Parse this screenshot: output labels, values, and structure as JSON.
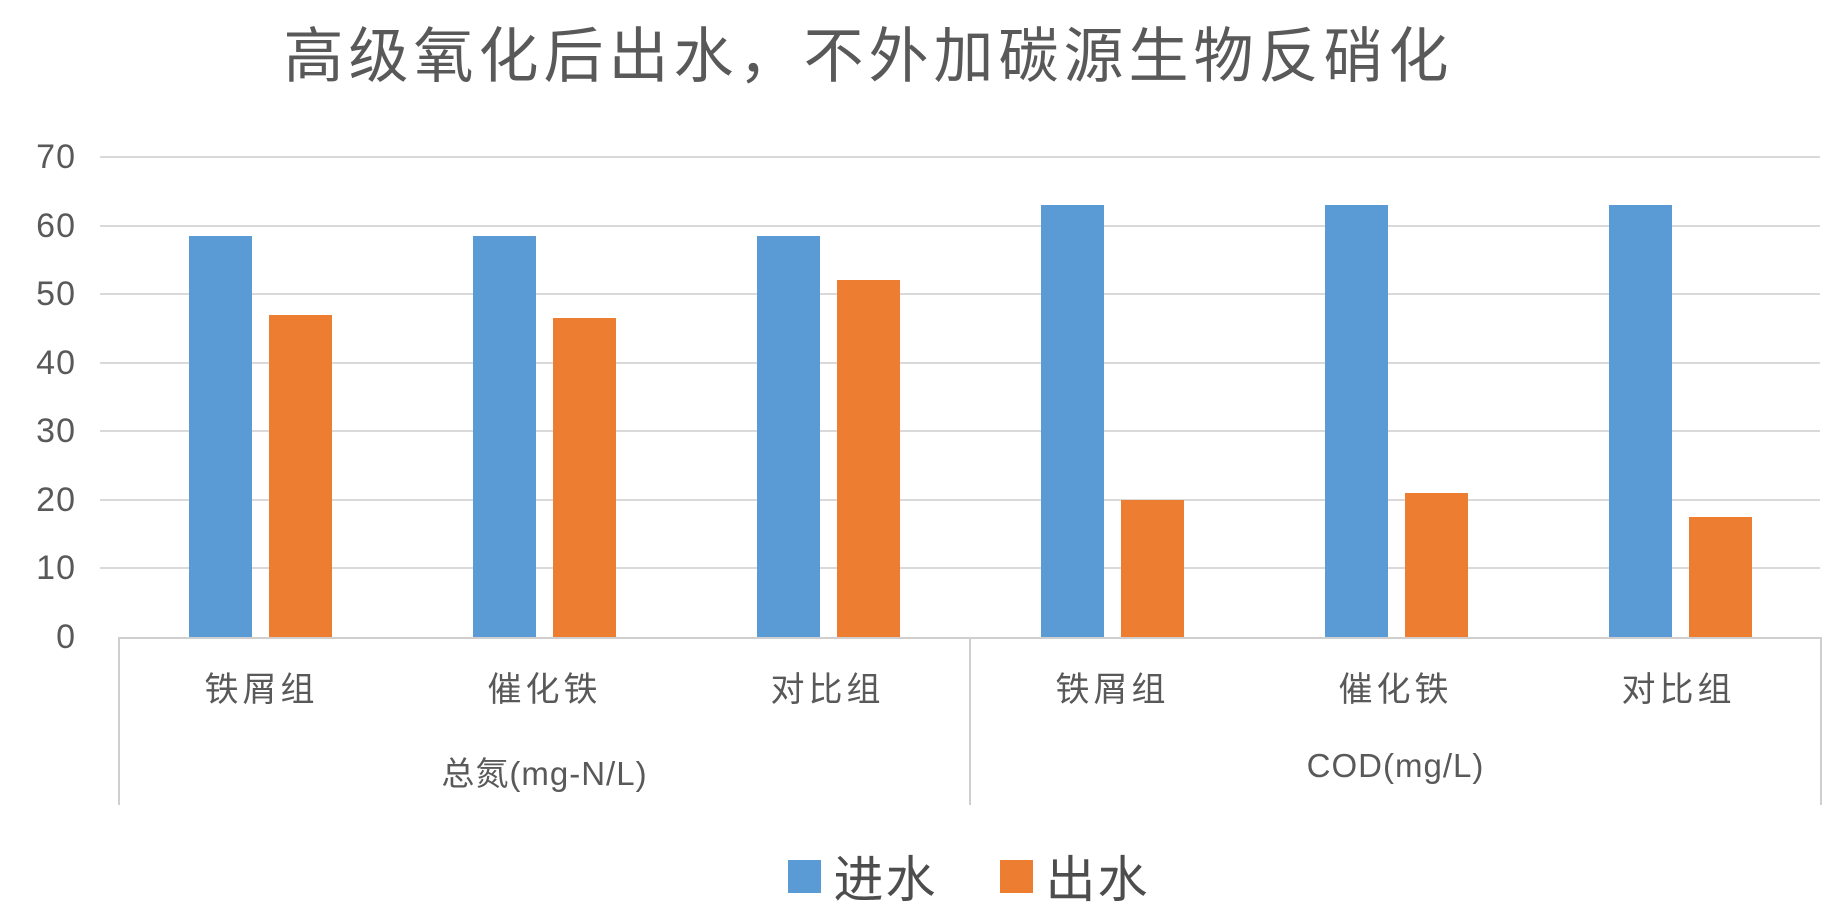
{
  "title": "高级氧化后出水，不外加碳源生物反硝化",
  "y_axis": {
    "tick_labels": [
      "70",
      "60",
      "50",
      "40",
      "30",
      "20",
      "10",
      "0"
    ]
  },
  "legend": {
    "items": [
      {
        "label": "进水",
        "color": "#5B9BD5"
      },
      {
        "label": "出水",
        "color": "#ED7D31"
      }
    ]
  },
  "colors": {
    "bar_blue": "#5B9BD5",
    "bar_orange": "#ED7D31",
    "gridline": "#D9D9D9",
    "axis_border": "#D0CECE",
    "text": "#595959",
    "background": "#FFFFFF"
  },
  "chart_data": {
    "type": "bar",
    "title": "高级氧化后出水，不外加碳源生物反硝化",
    "groups": [
      {
        "label": "总氮(mg-N/L)",
        "categories": [
          "铁屑组",
          "催化铁",
          "对比组"
        ]
      },
      {
        "label": "COD(mg/L)",
        "categories": [
          "铁屑组",
          "催化铁",
          "对比组"
        ]
      }
    ],
    "categories": [
      "铁屑组",
      "催化铁",
      "对比组",
      "铁屑组",
      "催化铁",
      "对比组"
    ],
    "series": [
      {
        "name": "进水",
        "color": "#5B9BD5",
        "values": [
          58.5,
          58.5,
          58.5,
          63,
          63,
          63
        ]
      },
      {
        "name": "出水",
        "color": "#ED7D31",
        "values": [
          47,
          46.5,
          52,
          20,
          21,
          17.5
        ]
      }
    ],
    "ylim": [
      0,
      70
    ],
    "ytick_step": 10,
    "grid": true,
    "legend_position": "bottom"
  }
}
